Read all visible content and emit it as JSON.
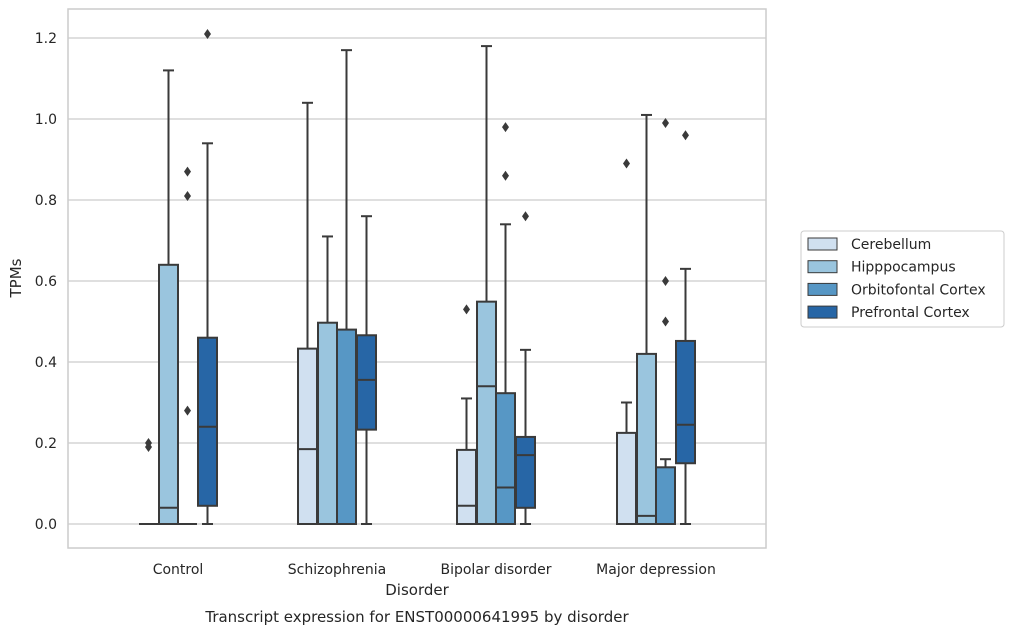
{
  "chart_data": {
    "type": "boxplot",
    "xlabel": "Disorder",
    "ylabel": "TPMs",
    "caption": "Transcript expression for ENST00000641995 by disorder",
    "categories": [
      "Control",
      "Schizophrenia",
      "Bipolar disorder",
      "Major depression"
    ],
    "ylim": [
      -0.06,
      1.27
    ],
    "yticks": [
      "0.0",
      "0.2",
      "0.4",
      "0.6",
      "0.8",
      "1.0",
      "1.2"
    ],
    "ytick_values": [
      0,
      0.2,
      0.4,
      0.6,
      0.8,
      1.0,
      1.2
    ],
    "grid": true,
    "legend_position": "right",
    "series": [
      {
        "name": "Cerebellum",
        "color": "#d0e0f0",
        "boxes": [
          {
            "q1": 0,
            "median": 0,
            "q3": 0,
            "whisker_low": 0,
            "whisker_high": 0,
            "outliers": [
              0.19,
              0.2
            ]
          },
          {
            "q1": 0,
            "median": 0.185,
            "q3": 0.433,
            "whisker_low": 0,
            "whisker_high": 1.04,
            "outliers": []
          },
          {
            "q1": 0,
            "median": 0.045,
            "q3": 0.183,
            "whisker_low": 0,
            "whisker_high": 0.31,
            "outliers": [
              0.53
            ]
          },
          {
            "q1": 0,
            "median": 0,
            "q3": 0.225,
            "whisker_low": 0,
            "whisker_high": 0.3,
            "outliers": [
              0.89
            ]
          }
        ]
      },
      {
        "name": "Hipppocampus",
        "color": "#9ac5de",
        "boxes": [
          {
            "q1": 0,
            "median": 0.04,
            "q3": 0.64,
            "whisker_low": 0,
            "whisker_high": 1.12,
            "outliers": []
          },
          {
            "q1": 0,
            "median": 0,
            "q3": 0.497,
            "whisker_low": 0,
            "whisker_high": 0.71,
            "outliers": []
          },
          {
            "q1": 0,
            "median": 0.34,
            "q3": 0.549,
            "whisker_low": 0,
            "whisker_high": 1.18,
            "outliers": []
          },
          {
            "q1": 0,
            "median": 0.02,
            "q3": 0.42,
            "whisker_low": 0,
            "whisker_high": 1.01,
            "outliers": []
          }
        ]
      },
      {
        "name": "Orbitofontal Cortex",
        "color": "#5797c5",
        "boxes": [
          {
            "q1": 0,
            "median": 0,
            "q3": 0,
            "whisker_low": 0,
            "whisker_high": 0,
            "outliers": [
              0.28,
              0.81,
              0.87
            ]
          },
          {
            "q1": 0,
            "median": 0,
            "q3": 0.48,
            "whisker_low": 0,
            "whisker_high": 1.17,
            "outliers": []
          },
          {
            "q1": 0,
            "median": 0.09,
            "q3": 0.323,
            "whisker_low": 0,
            "whisker_high": 0.74,
            "outliers": [
              0.86,
              0.98
            ]
          },
          {
            "q1": 0,
            "median": 0,
            "q3": 0.14,
            "whisker_low": 0,
            "whisker_high": 0.16,
            "outliers": [
              0.5,
              0.6,
              0.99
            ]
          }
        ]
      },
      {
        "name": "Prefrontal Cortex",
        "color": "#2766a6",
        "boxes": [
          {
            "q1": 0.045,
            "median": 0.24,
            "q3": 0.46,
            "whisker_low": 0,
            "whisker_high": 0.94,
            "outliers": [
              1.21
            ]
          },
          {
            "q1": 0.233,
            "median": 0.356,
            "q3": 0.466,
            "whisker_low": 0,
            "whisker_high": 0.76,
            "outliers": []
          },
          {
            "q1": 0.04,
            "median": 0.17,
            "q3": 0.215,
            "whisker_low": 0,
            "whisker_high": 0.43,
            "outliers": [
              0.76
            ]
          },
          {
            "q1": 0.15,
            "median": 0.245,
            "q3": 0.452,
            "whisker_low": 0,
            "whisker_high": 0.63,
            "outliers": [
              0.96
            ]
          }
        ]
      }
    ]
  }
}
